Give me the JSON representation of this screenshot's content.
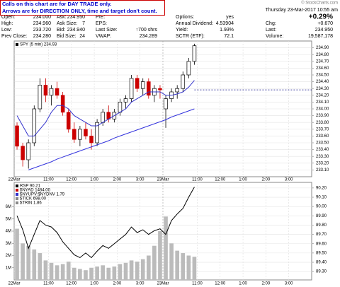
{
  "note": {
    "lines": [
      "Calls on this chart are for DAY TRADE only.",
      "Arrows are for DIRECTION ONLY, time and target don't count."
    ]
  },
  "header": {
    "date": "Thursday 23-Mar-2017 10:55 am",
    "credit": "© StockCharts.com"
  },
  "quote": {
    "columns": [
      {
        "rows": [
          {
            "label": "Open:",
            "value": "234.000"
          },
          {
            "label": "High:",
            "value": "234.960"
          },
          {
            "label": "Low:",
            "value": "233.720"
          },
          {
            "label": "Prev Close:",
            "value": "234.280"
          }
        ]
      },
      {
        "rows": [
          {
            "label": "Ask:",
            "value": "234.950"
          },
          {
            "label": "Ask Size:",
            "value": "7"
          },
          {
            "label": "Bid:",
            "value": "234.940"
          },
          {
            "label": "Bid Size:",
            "value": "24"
          }
        ]
      },
      {
        "rows": [
          {
            "label": "P/E:"
          },
          {
            "label": "EPS:"
          },
          {
            "label": "Last Size:",
            "value": "↑700 shrs"
          },
          {
            "label": "VWAP:",
            "value": "234.289"
          }
        ]
      },
      {
        "rows": [
          {
            "label": "Options:",
            "value": "yes"
          },
          {
            "label": "Annual Dividend:",
            "value": "4.53904"
          },
          {
            "label": "Yield:",
            "value": "1.93%"
          },
          {
            "label": "SCTR (ETF):",
            "value": "72.1"
          }
        ]
      },
      {
        "rows": [
          {
            "value": "+0.29%"
          },
          {
            "label": "Chg:",
            "value": "+0.670"
          },
          {
            "label": "Last:",
            "value": "234.950"
          },
          {
            "label": "Volume:",
            "value": "19,587,178"
          }
        ]
      }
    ]
  },
  "chart_data": [
    {
      "type": "candlestick",
      "categories": [
        "22Mar",
        null,
        null,
        null,
        null,
        null,
        "11:00",
        null,
        null,
        null,
        "12:00",
        null,
        null,
        null,
        "1:00",
        null,
        null,
        null,
        "2:00",
        null,
        null,
        null,
        "3:00",
        null,
        null,
        null,
        "23Mar",
        null,
        null,
        null,
        null,
        null,
        "11:00",
        null,
        null,
        null,
        "12:00",
        null,
        null,
        null,
        "1:00",
        null,
        null,
        null,
        "2:00",
        null,
        null,
        null,
        "3:00",
        null,
        null,
        null
      ],
      "series": [
        {
          "name": "SPY (5 min) 234.93",
          "type": "candlestick",
          "color": "#000000",
          "down_color": "#cc0000",
          "open": [
            233.75,
            233.45,
            233.25,
            233.5,
            234.0,
            234.35,
            234.2,
            234.3,
            234.2,
            233.95,
            233.7,
            233.55,
            233.7,
            233.6,
            233.5,
            233.8,
            233.95,
            233.85,
            233.95,
            234.1,
            234.15,
            234.45,
            234.3,
            234.4,
            234.2,
            234.3,
            234.0,
            234.15,
            234.25,
            234.3,
            234.5,
            234.7,
            null,
            null,
            null,
            null,
            null,
            null,
            null,
            null,
            null,
            null,
            null,
            null,
            null,
            null,
            null,
            null,
            null,
            null,
            null,
            null
          ],
          "high": [
            233.8,
            233.5,
            233.55,
            234.05,
            234.45,
            234.45,
            234.35,
            234.4,
            234.25,
            234.0,
            233.8,
            233.75,
            233.8,
            233.7,
            233.85,
            234.0,
            234.05,
            234.0,
            234.15,
            234.2,
            234.5,
            234.5,
            234.45,
            234.45,
            234.35,
            234.35,
            234.2,
            234.3,
            234.35,
            234.55,
            234.75,
            234.96,
            null,
            null,
            null,
            null,
            null,
            null,
            null,
            null,
            null,
            null,
            null,
            null,
            null,
            null,
            null,
            null,
            null,
            null,
            null,
            null
          ],
          "low": [
            233.4,
            233.15,
            233.12,
            233.45,
            233.95,
            234.1,
            234.05,
            234.15,
            233.9,
            233.65,
            233.5,
            233.45,
            233.55,
            233.4,
            233.45,
            233.75,
            233.8,
            233.8,
            233.9,
            234.0,
            234.1,
            234.25,
            234.2,
            234.15,
            234.1,
            234.15,
            233.72,
            234.1,
            234.15,
            234.25,
            234.45,
            234.65,
            null,
            null,
            null,
            null,
            null,
            null,
            null,
            null,
            null,
            null,
            null,
            null,
            null,
            null,
            null,
            null,
            null,
            null,
            null,
            null
          ],
          "close": [
            233.45,
            233.25,
            233.5,
            234.0,
            234.35,
            234.2,
            234.3,
            234.2,
            233.95,
            233.7,
            233.55,
            233.7,
            233.6,
            233.5,
            233.8,
            233.95,
            233.85,
            233.95,
            234.1,
            234.15,
            234.45,
            234.3,
            234.4,
            234.2,
            234.3,
            234.28,
            234.15,
            234.25,
            234.3,
            234.5,
            234.7,
            234.93,
            null,
            null,
            null,
            null,
            null,
            null,
            null,
            null,
            null,
            null,
            null,
            null,
            null,
            null,
            null,
            null,
            null,
            null,
            null,
            null
          ]
        },
        {
          "type": "line",
          "color": "#3333cc",
          "values": [
            233.9,
            233.75,
            233.6,
            233.6,
            233.7,
            233.8,
            233.95,
            234.05,
            234.05,
            234.0,
            233.9,
            233.85,
            233.8,
            233.75,
            233.75,
            233.8,
            233.85,
            233.9,
            233.95,
            234.0,
            234.1,
            234.15,
            234.2,
            234.25,
            234.25,
            234.25,
            234.2,
            234.2,
            234.22,
            234.25,
            234.32,
            234.42,
            null,
            null,
            null,
            null,
            null,
            null,
            null,
            null,
            null,
            null,
            null,
            null,
            null,
            null,
            null,
            null,
            null,
            null,
            null,
            null
          ]
        },
        {
          "type": "line",
          "color": "#3333dd",
          "values": [
            null,
            null,
            233.1,
            233.13,
            233.16,
            233.19,
            233.22,
            233.26,
            233.29,
            233.32,
            233.35,
            233.38,
            233.41,
            233.44,
            233.47,
            233.5,
            233.53,
            233.57,
            233.6,
            233.63,
            233.66,
            233.69,
            233.72,
            233.75,
            233.78,
            233.81,
            233.84,
            233.88,
            233.91,
            233.94,
            233.97,
            234.0,
            null,
            null,
            null,
            null,
            null,
            null,
            null,
            null,
            null,
            null,
            null,
            null,
            null,
            null,
            null,
            null,
            null,
            null,
            null,
            null
          ]
        }
      ],
      "reference_line": 234.28,
      "reference_color": "#000080",
      "ylim": [
        233.0,
        235.0
      ],
      "yticks": [
        {
          "value": 233.1,
          "label": "233.10"
        },
        {
          "value": 233.2,
          "label": "233.20"
        },
        {
          "value": 233.3,
          "label": "233.30"
        },
        {
          "value": 233.4,
          "label": "233.40"
        },
        {
          "value": 233.5,
          "label": "233.50"
        },
        {
          "value": 233.6,
          "label": "233.60"
        },
        {
          "value": 233.7,
          "label": "233.70"
        },
        {
          "value": 233.8,
          "label": "233.80"
        },
        {
          "value": 233.9,
          "label": "233.90"
        },
        {
          "value": 234.0,
          "label": "234.00"
        },
        {
          "value": 234.1,
          "label": "234.10"
        },
        {
          "value": 234.2,
          "label": "234.20"
        },
        {
          "value": 234.3,
          "label": "234.30"
        },
        {
          "value": 234.4,
          "label": "234.40"
        },
        {
          "value": 234.5,
          "label": "234.50"
        },
        {
          "value": 234.6,
          "label": "234.60"
        },
        {
          "value": 234.7,
          "label": "234.70"
        },
        {
          "value": 234.8,
          "label": "234.80"
        },
        {
          "value": 234.9,
          "label": "234.90"
        }
      ],
      "grid": true
    },
    {
      "type": "line",
      "categories": [
        "22Mar",
        null,
        null,
        null,
        null,
        null,
        "11:00",
        null,
        null,
        null,
        "12:00",
        null,
        null,
        null,
        "1:00",
        null,
        null,
        null,
        "2:00",
        null,
        null,
        null,
        "3:00",
        null,
        null,
        null,
        "23Mar",
        null,
        null,
        null,
        null,
        null,
        "11:00",
        null,
        null,
        null,
        "12:00",
        null,
        null,
        null,
        "1:00",
        null,
        null,
        null,
        "2:00",
        null,
        null,
        null,
        "3:00",
        null,
        null,
        null
      ],
      "series": [
        {
          "type": "bar",
          "axis": "y2",
          "color": "#bbbbbb",
          "values": [
            4200000,
            3000000,
            2800000,
            2500000,
            2200000,
            1600000,
            1400000,
            1200000,
            1300000,
            1500000,
            1000000,
            900000,
            800000,
            1000000,
            1100000,
            1200000,
            1000000,
            1100000,
            1300000,
            1400000,
            1600000,
            1500000,
            1700000,
            2000000,
            2800000,
            4000000,
            5200000,
            3000000,
            2400000,
            2200000,
            2000000,
            1900000,
            null,
            null,
            null,
            null,
            null,
            null,
            null,
            null,
            null,
            null,
            null,
            null,
            null,
            null,
            null,
            null,
            null,
            null,
            null,
            null
          ]
        },
        {
          "name": "RSP 90.21",
          "type": "line",
          "color": "#000000",
          "values": [
            89.9,
            89.75,
            89.55,
            89.7,
            89.85,
            89.8,
            89.78,
            89.72,
            89.62,
            89.55,
            89.48,
            89.45,
            89.5,
            89.45,
            89.52,
            89.58,
            89.55,
            89.6,
            89.65,
            89.7,
            89.78,
            89.72,
            89.75,
            89.7,
            89.74,
            89.76,
            89.7,
            89.85,
            89.92,
            89.98,
            90.1,
            90.21,
            null,
            null,
            null,
            null,
            null,
            null,
            null,
            null,
            null,
            null,
            null,
            null,
            null,
            null,
            null,
            null,
            null,
            null,
            null,
            null
          ]
        }
      ],
      "annotations": [
        "$NYAD 1484.00",
        "$NYUPV:$NYDNV 1.79",
        "$TICK 698.00",
        "$TRIN 1.86"
      ],
      "annotation_colors": [
        "#cc0000",
        "#3333cc",
        "#888888",
        "#888888"
      ],
      "ylim": [
        89.21,
        90.26
      ],
      "yticks": [
        {
          "value": 89.3,
          "label": "89.30"
        },
        {
          "value": 89.4,
          "label": "89.40"
        },
        {
          "value": 89.5,
          "label": "89.50"
        },
        {
          "value": 89.6,
          "label": "89.60"
        },
        {
          "value": 89.7,
          "label": "89.70"
        },
        {
          "value": 89.8,
          "label": "89.80"
        },
        {
          "value": 89.9,
          "label": "89.90"
        },
        {
          "value": 90.0,
          "label": "90.00"
        },
        {
          "value": 90.1,
          "label": "90.10"
        },
        {
          "value": 90.2,
          "label": "90.20"
        }
      ],
      "y2lim": [
        0,
        8000000
      ],
      "y2ticks": [
        {
          "value": 1000000,
          "label": "1M"
        },
        {
          "value": 2000000,
          "label": "2M"
        },
        {
          "value": 3000000,
          "label": "3M"
        },
        {
          "value": 4000000,
          "label": "4M"
        },
        {
          "value": 5000000,
          "label": "5M"
        },
        {
          "value": 6000000,
          "label": "6M"
        }
      ],
      "grid": true
    }
  ]
}
